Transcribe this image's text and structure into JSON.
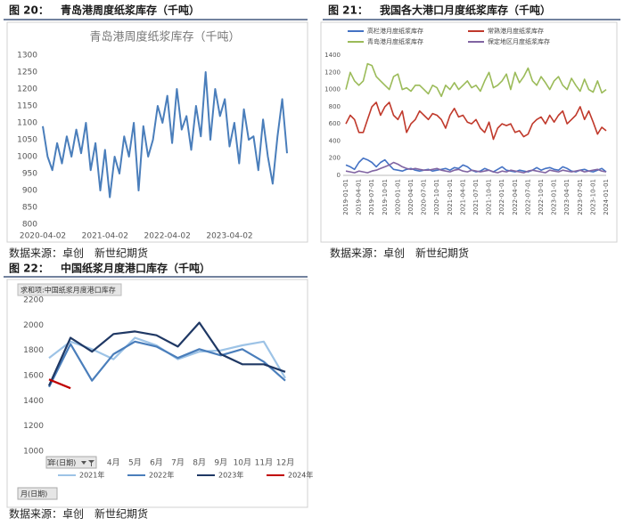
{
  "figures": [
    {
      "label": "图 20：",
      "caption": "青岛港周度纸浆库存（千吨）",
      "source": "数据来源：卓创　新世纪期货"
    },
    {
      "label": "图 21：",
      "caption": "我国各大港口月度纸浆库存（千吨）",
      "source": "数据来源：卓创　新世纪期货"
    },
    {
      "label": "图 22：",
      "caption": "中国纸浆月度港口库存（千吨）",
      "source": "数据来源：卓创　新世纪期货"
    }
  ],
  "chart_data": [
    {
      "type": "line",
      "title": "青岛港周度纸浆库存（千吨）",
      "color": "#4a7ebb",
      "categories": [
        "2020-04-02",
        null,
        null,
        null,
        null,
        null,
        null,
        null,
        null,
        null,
        null,
        null,
        null,
        "2021-04-02",
        null,
        null,
        null,
        null,
        null,
        null,
        null,
        null,
        null,
        null,
        null,
        null,
        "2022-04-02",
        null,
        null,
        null,
        null,
        null,
        null,
        null,
        null,
        null,
        null,
        null,
        null,
        "2023-04-02",
        null,
        null,
        null,
        null,
        null,
        null,
        null,
        null,
        null,
        null,
        null,
        null
      ],
      "values": [
        1090,
        1000,
        960,
        1040,
        980,
        1060,
        1000,
        1080,
        1010,
        1100,
        960,
        1040,
        900,
        1020,
        880,
        1000,
        950,
        1060,
        1000,
        1100,
        900,
        1090,
        1000,
        1050,
        1150,
        1100,
        1180,
        1040,
        1200,
        1080,
        1120,
        1020,
        1150,
        1060,
        1250,
        1050,
        1200,
        1120,
        1170,
        1030,
        1100,
        980,
        1140,
        1050,
        1060,
        960,
        1110,
        1000,
        920,
        1060,
        1170,
        1010
      ],
      "ylim": [
        800,
        1300
      ],
      "yticks": [
        800,
        850,
        900,
        950,
        1000,
        1050,
        1100,
        1150,
        1200,
        1250,
        1300
      ],
      "grid": false
    },
    {
      "type": "line",
      "categories": [
        "2019-01-01",
        null,
        null,
        "2019-04-01",
        null,
        null,
        "2019-07-01",
        null,
        null,
        "2019-10-01",
        null,
        null,
        "2020-01-01",
        null,
        null,
        "2020-04-01",
        null,
        null,
        "2020-07-01",
        null,
        null,
        "2020-10-01",
        null,
        null,
        "2021-01-01",
        null,
        null,
        "2021-04-01",
        null,
        null,
        "2021-07-01",
        null,
        null,
        "2021-10-01",
        null,
        null,
        "2022-01-01",
        null,
        null,
        "2022-04-01",
        null,
        null,
        "2022-07-01",
        null,
        null,
        "2022-10-01",
        null,
        null,
        "2023-01-01",
        null,
        null,
        "2023-04-01",
        null,
        null,
        "2023-07-01",
        null,
        null,
        "2023-10-01",
        null,
        null,
        "2024-01-01"
      ],
      "series": [
        {
          "name": "高栏港月度纸浆库存",
          "color": "#4472c4",
          "values": [
            120,
            100,
            70,
            150,
            200,
            180,
            150,
            100,
            150,
            180,
            120,
            70,
            60,
            50,
            70,
            80,
            60,
            50,
            60,
            70,
            50,
            60,
            70,
            80,
            60,
            90,
            80,
            120,
            100,
            60,
            40,
            50,
            80,
            60,
            40,
            70,
            100,
            60,
            50,
            40,
            60,
            50,
            40,
            60,
            90,
            60,
            80,
            90,
            70,
            60,
            100,
            80,
            50,
            40,
            60,
            70,
            50,
            40,
            60,
            80,
            40
          ]
        },
        {
          "name": "常熟港月度纸浆库存",
          "color": "#c0392b",
          "values": [
            600,
            700,
            650,
            500,
            500,
            650,
            800,
            850,
            700,
            800,
            850,
            700,
            650,
            750,
            500,
            600,
            650,
            750,
            700,
            650,
            720,
            700,
            650,
            550,
            700,
            780,
            680,
            700,
            620,
            600,
            650,
            550,
            500,
            620,
            420,
            550,
            600,
            580,
            600,
            500,
            520,
            450,
            480,
            600,
            650,
            680,
            600,
            700,
            620,
            700,
            750,
            600,
            650,
            700,
            800,
            650,
            750,
            620,
            480,
            560,
            520
          ]
        },
        {
          "name": "青岛港月度纸浆库存",
          "color": "#9bbb59",
          "values": [
            1000,
            1200,
            1100,
            1050,
            1100,
            1300,
            1280,
            1150,
            1100,
            1050,
            1000,
            1150,
            1180,
            1000,
            1020,
            980,
            1050,
            1050,
            1000,
            950,
            1050,
            1020,
            920,
            1050,
            1000,
            1080,
            1000,
            1050,
            1100,
            1020,
            1050,
            980,
            1100,
            1200,
            1020,
            1050,
            1100,
            1180,
            1000,
            1200,
            1080,
            1150,
            1250,
            1100,
            1050,
            1150,
            1080,
            1000,
            1100,
            1150,
            1050,
            1000,
            1130,
            1050,
            980,
            1120,
            1000,
            970,
            1100,
            960,
            1000
          ]
        },
        {
          "name": "保定地区月度纸浆库存",
          "color": "#8064a2",
          "values": [
            50,
            40,
            30,
            50,
            40,
            30,
            50,
            60,
            80,
            100,
            120,
            150,
            130,
            100,
            80,
            70,
            80,
            70,
            60,
            60,
            70,
            80,
            60,
            50,
            40,
            60,
            70,
            50,
            40,
            60,
            50,
            40,
            50,
            60,
            40,
            30,
            50,
            40,
            60,
            50,
            40,
            30,
            50,
            60,
            50,
            40,
            30,
            60,
            50,
            40,
            60,
            50,
            40,
            50,
            60,
            40,
            50,
            60,
            70,
            50,
            40
          ]
        }
      ],
      "ylim": [
        0,
        1400
      ],
      "yticks": [
        0,
        200,
        400,
        600,
        800,
        1000,
        1200,
        1400
      ],
      "grid": false,
      "legend": "top"
    },
    {
      "type": "line",
      "title": "求和项:中国纸浆月度港口库存",
      "filters": [
        "年(日期)",
        "月(日期)"
      ],
      "categories": [
        "1",
        null,
        null,
        "4月",
        "5月",
        "6月",
        "7月",
        "8月",
        "9月",
        "10月",
        "11月",
        "12月"
      ],
      "series": [
        {
          "name": "2021年",
          "color": "#9dc3e6",
          "values": [
            1740,
            1870,
            1810,
            1730,
            1900,
            1840,
            1730,
            1790,
            1800,
            1840,
            1870,
            1580
          ]
        },
        {
          "name": "2022年",
          "color": "#4a7ebb",
          "values": [
            1510,
            1850,
            1560,
            1770,
            1870,
            1830,
            1740,
            1810,
            1760,
            1810,
            1710,
            1560
          ]
        },
        {
          "name": "2023年",
          "color": "#1f3864",
          "values": [
            1520,
            1900,
            1790,
            1930,
            1950,
            1920,
            1830,
            2020,
            1770,
            1690,
            1690,
            1630
          ]
        },
        {
          "name": "2024年",
          "color": "#c00000",
          "values": [
            1570,
            1500,
            null,
            null,
            null,
            null,
            null,
            null,
            null,
            null,
            null,
            null
          ]
        }
      ],
      "ylim": [
        1000,
        2200
      ],
      "yticks": [
        1000,
        1200,
        1400,
        1600,
        1800,
        2000,
        2200
      ],
      "grid": false,
      "legend": "bottom"
    }
  ]
}
